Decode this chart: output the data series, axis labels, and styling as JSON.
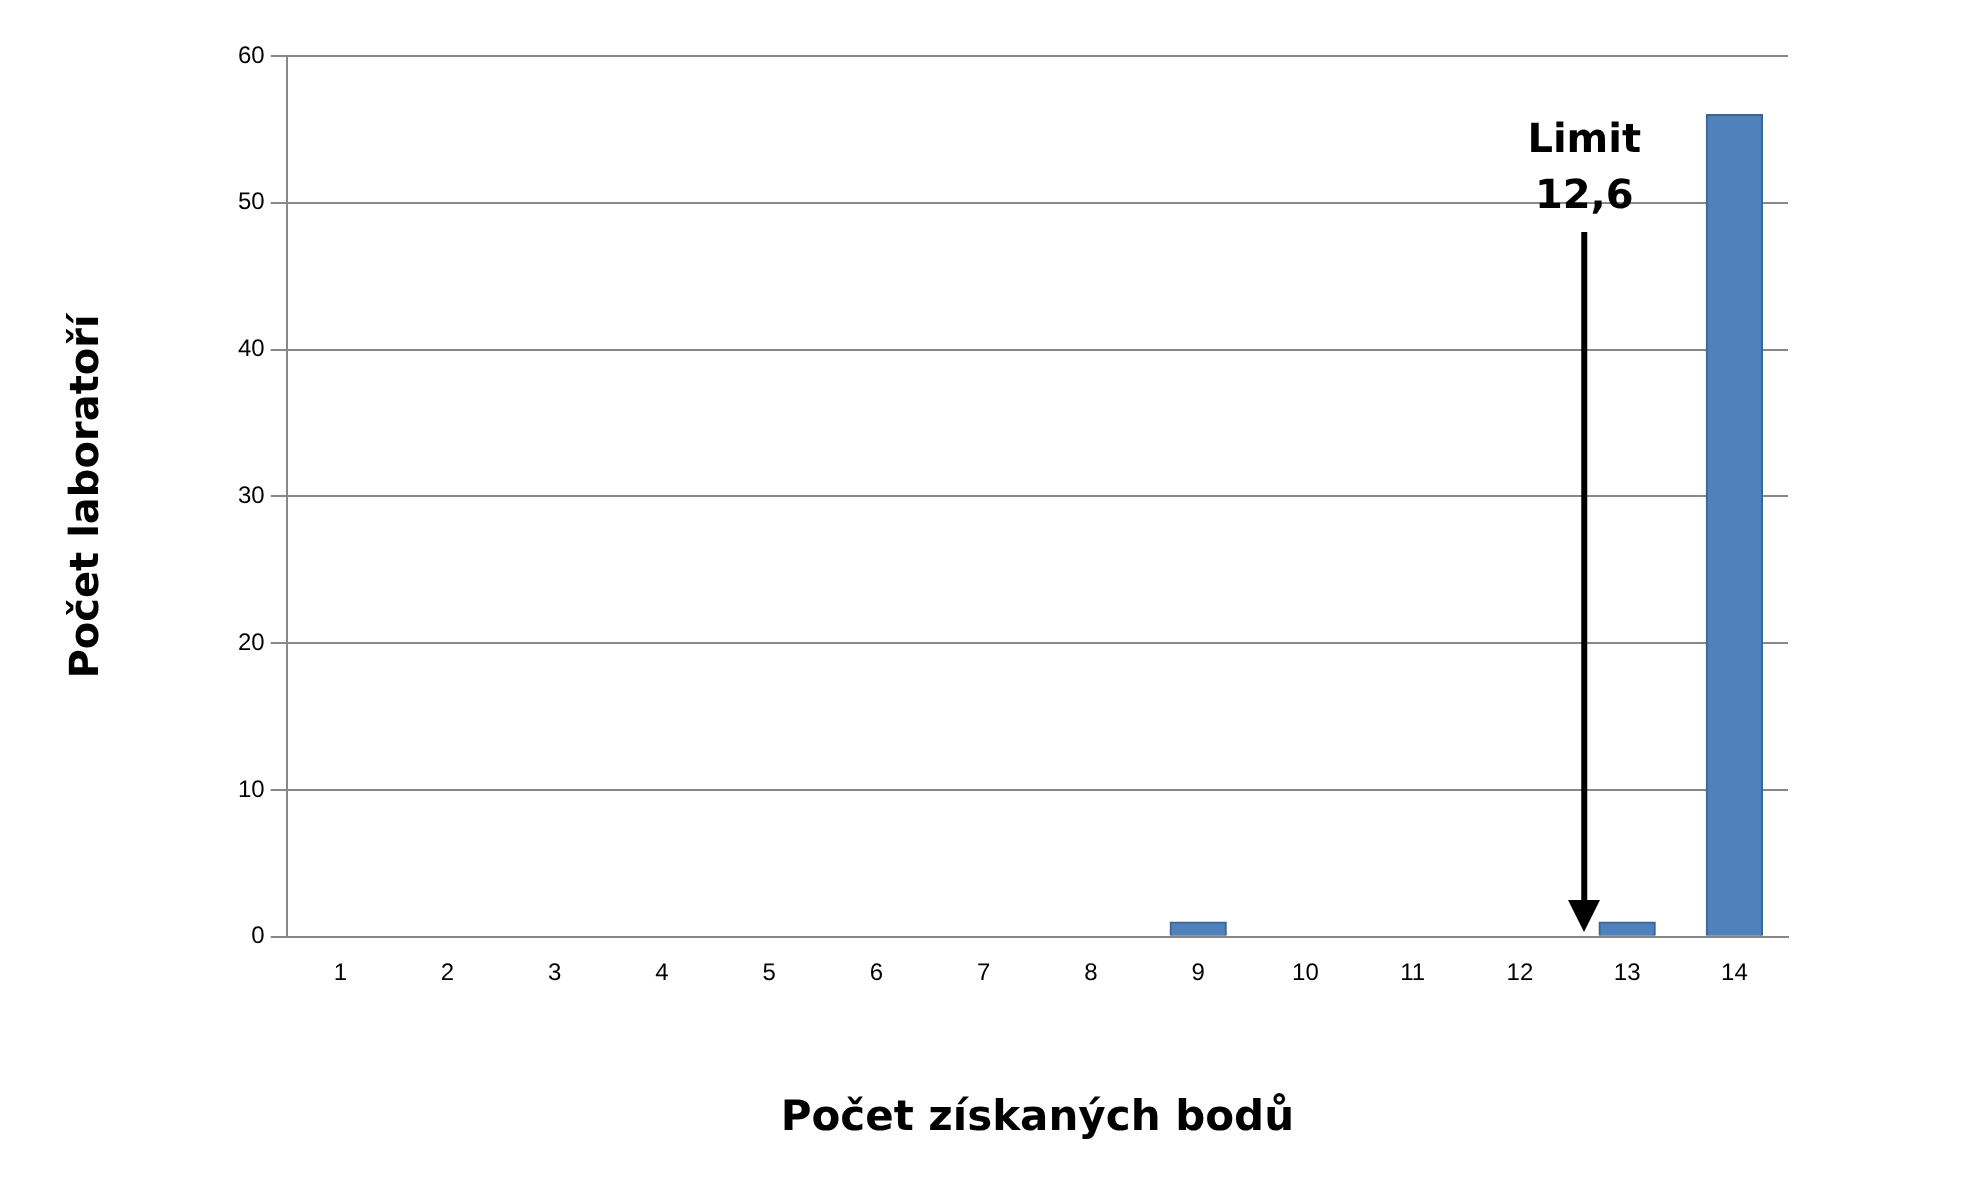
{
  "chart_data": {
    "type": "bar",
    "xlabel": "Počet získaných bodů",
    "ylabel": "Počet laboratoří",
    "x": [
      1,
      2,
      3,
      4,
      5,
      6,
      7,
      8,
      9,
      10,
      11,
      12,
      13,
      14
    ],
    "values": [
      0,
      0,
      0,
      0,
      0,
      0,
      0,
      0,
      1,
      0,
      0,
      0,
      1,
      56
    ],
    "color": "#4f81bd",
    "xlim": [
      0.5,
      14.5
    ],
    "xticks": [
      1,
      2,
      3,
      4,
      5,
      6,
      7,
      8,
      9,
      10,
      11,
      12,
      13,
      14
    ],
    "ylim": [
      0,
      60
    ],
    "yticks": [
      0,
      10,
      20,
      30,
      40,
      50,
      60
    ],
    "grid": "y",
    "ref_lines": [
      {
        "axis": "x",
        "value": 12.6,
        "label": "Limit 12,6"
      }
    ]
  }
}
